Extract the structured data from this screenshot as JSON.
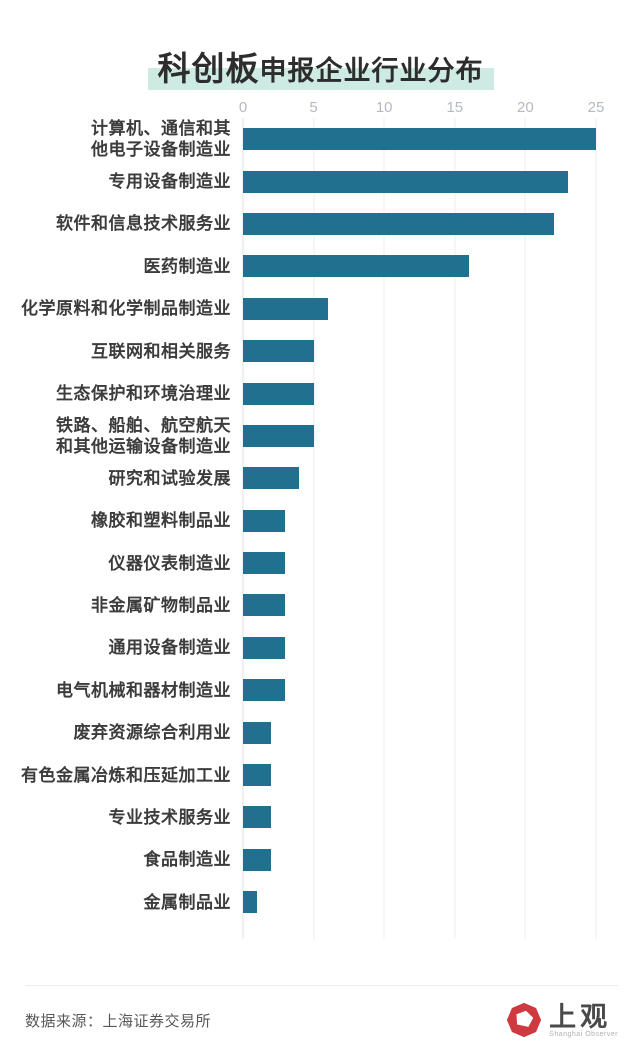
{
  "title": {
    "full": "科创板申报企业行业分布",
    "emphasis": "科创板",
    "rest": "申报企业行业分布",
    "highlight_color": "#cdeae3"
  },
  "chart_data": {
    "type": "bar",
    "orientation": "horizontal",
    "title": "科创板申报企业行业分布",
    "categories": [
      "计算机、通信和其\n他电子设备制造业",
      "专用设备制造业",
      "软件和信息技术服务业",
      "医药制造业",
      "化学原料和化学制品制造业",
      "互联网和相关服务",
      "生态保护和环境治理业",
      "铁路、船舶、航空航天\n和其他运输设备制造业",
      "研究和试验发展",
      "橡胶和塑料制品业",
      "仪器仪表制造业",
      "非金属矿物制品业",
      "通用设备制造业",
      "电气机械和器材制造业",
      "废弃资源综合利用业",
      "有色金属冶炼和压延加工业",
      "专业技术服务业",
      "食品制造业",
      "金属制品业"
    ],
    "values": [
      25,
      23,
      22,
      16,
      6,
      5,
      5,
      5,
      4,
      3,
      3,
      3,
      3,
      3,
      2,
      2,
      2,
      2,
      1
    ],
    "xlabel": "",
    "ylabel": "",
    "xlim": [
      0,
      25
    ],
    "x_ticks": [
      0,
      5,
      10,
      15,
      20,
      25
    ],
    "axis_position": "top",
    "grid": true,
    "bar_color": "#21708f",
    "gridline_color": "#e9edef",
    "tick_label_color": "#b4bac1"
  },
  "footer": {
    "source": "数据来源：上海证券交易所",
    "logo_name": "上观",
    "logo_sub": "Shanghai Observer",
    "logo_color": "#ce3a40"
  }
}
